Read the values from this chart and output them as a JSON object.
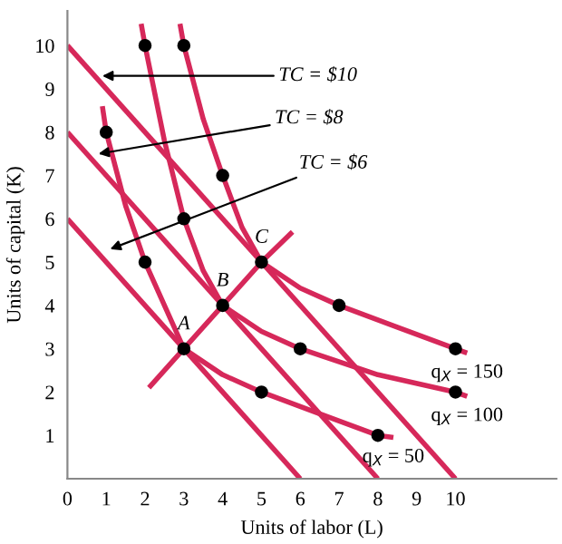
{
  "chart_data": {
    "type": "line",
    "xlabel": "Units of labor (L)",
    "ylabel": "Units of capital (K)",
    "xlim": [
      0,
      12.6
    ],
    "ylim": [
      0,
      10.8
    ],
    "xticks": [
      0,
      1,
      2,
      3,
      4,
      5,
      6,
      7,
      8,
      9,
      10
    ],
    "yticks": [
      1,
      2,
      3,
      4,
      5,
      6,
      7,
      8,
      9,
      10
    ],
    "grid": false,
    "legend": false,
    "marker": "none",
    "line_style": "solid",
    "series": [
      {
        "color": "#d6285a",
        "x": [
          0,
          6
        ],
        "values": [
          6,
          0
        ]
      },
      {
        "color": "#d6285a",
        "x": [
          0,
          8
        ],
        "values": [
          8,
          0
        ]
      },
      {
        "color": "#d6285a",
        "x": [
          0,
          10
        ],
        "values": [
          10,
          0
        ]
      },
      {
        "color": "#d6285a",
        "x": [
          2.1,
          3,
          4,
          5,
          5.8
        ],
        "values": [
          2.1,
          3,
          4,
          5,
          5.7
        ]
      },
      {
        "name": "q$_{X}$ = 50",
        "color": "#d6285a",
        "x": [
          0.9,
          1,
          1.5,
          2,
          3,
          4,
          5,
          6.5,
          8,
          8.4
        ],
        "values": [
          8.6,
          8,
          6.3,
          5,
          3,
          2.4,
          2,
          1.5,
          1,
          0.95
        ]
      },
      {
        "name": "q$_{X}$ = 100",
        "color": "#d6285a",
        "x": [
          1.9,
          2,
          2.5,
          3,
          3.5,
          4,
          5,
          6,
          8,
          10,
          10.3
        ],
        "values": [
          10.5,
          10,
          7.8,
          6,
          4.8,
          4,
          3.4,
          3,
          2.4,
          2,
          1.9
        ]
      },
      {
        "name": "q$_{X}$ = 150",
        "color": "#d6285a",
        "x": [
          2.9,
          3,
          3.5,
          4,
          4.5,
          5,
          6,
          7,
          8.5,
          10,
          10.3
        ],
        "values": [
          10.5,
          10,
          8.3,
          7,
          5.8,
          5,
          4.4,
          4,
          3.5,
          3,
          2.9
        ]
      },
      {
        "type": "scatter",
        "color": "#000000",
        "marker": "circle",
        "x": [
          1,
          2,
          3,
          5,
          8,
          2,
          3,
          4,
          6,
          10,
          3,
          4,
          5,
          7,
          10
        ],
        "values": [
          8,
          5,
          3,
          2,
          1,
          10,
          6,
          4,
          3,
          2,
          10,
          7,
          5,
          4,
          3
        ]
      }
    ],
    "annotations": [
      {
        "text": "TC = $10",
        "x": 0.9,
        "y": 9.3
      },
      {
        "text": "TC = $8",
        "x": 0.8,
        "y": 7.5
      },
      {
        "text": "TC = $6",
        "x": 1.1,
        "y": 5.3
      },
      {
        "text": "A",
        "x": 3,
        "y": 3
      },
      {
        "text": "B",
        "x": 4,
        "y": 4
      },
      {
        "text": "C",
        "x": 5,
        "y": 5
      }
    ]
  }
}
